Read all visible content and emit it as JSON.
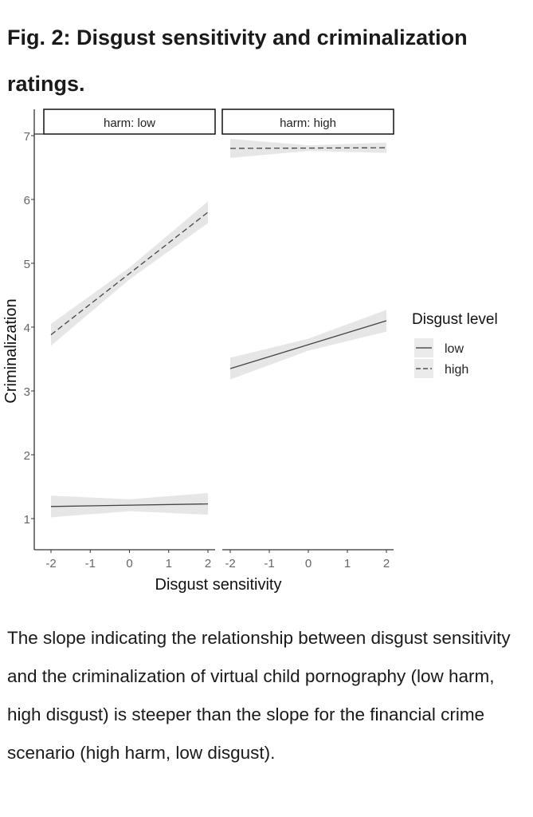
{
  "figure_title": "Fig. 2: Disgust sensitivity and criminalization ratings.",
  "caption": "The slope indicating the relationship between disgust sensitivity and the criminalization of virtual child pornography (low harm, high disgust) is steeper than the slope for the financial crime scenario (high harm, low disgust).",
  "chart_data": {
    "type": "line",
    "xlabel": "Disgust sensitivity",
    "ylabel": "Criminalization",
    "xlim": [
      -2,
      2
    ],
    "ylim": [
      0.5,
      7
    ],
    "xticks": [
      "-2",
      "-1",
      "0",
      "1",
      "2"
    ],
    "yticks": [
      "1",
      "2",
      "3",
      "4",
      "5",
      "6",
      "7"
    ],
    "grid": false,
    "legend": {
      "title": "Disgust level",
      "placement": "right",
      "entries": [
        {
          "label": "low",
          "style": "solid"
        },
        {
          "label": "high",
          "style": "dashed"
        }
      ]
    },
    "panels": [
      {
        "label": "harm: low",
        "series": [
          {
            "name": "low",
            "x": [
              -2,
              2
            ],
            "y": [
              1.19,
              1.23
            ],
            "ci": [
              0.17,
              0.17
            ]
          },
          {
            "name": "high",
            "x": [
              -2,
              2
            ],
            "y": [
              3.88,
              5.8
            ],
            "ci": [
              0.17,
              0.17
            ]
          }
        ]
      },
      {
        "label": "harm: high",
        "series": [
          {
            "name": "low",
            "x": [
              -2,
              2
            ],
            "y": [
              3.35,
              4.1
            ],
            "ci": [
              0.17,
              0.17
            ]
          },
          {
            "name": "high",
            "x": [
              -2,
              2
            ],
            "y": [
              6.8,
              6.81
            ],
            "ci": [
              0.15,
              0.08
            ]
          }
        ]
      }
    ]
  }
}
